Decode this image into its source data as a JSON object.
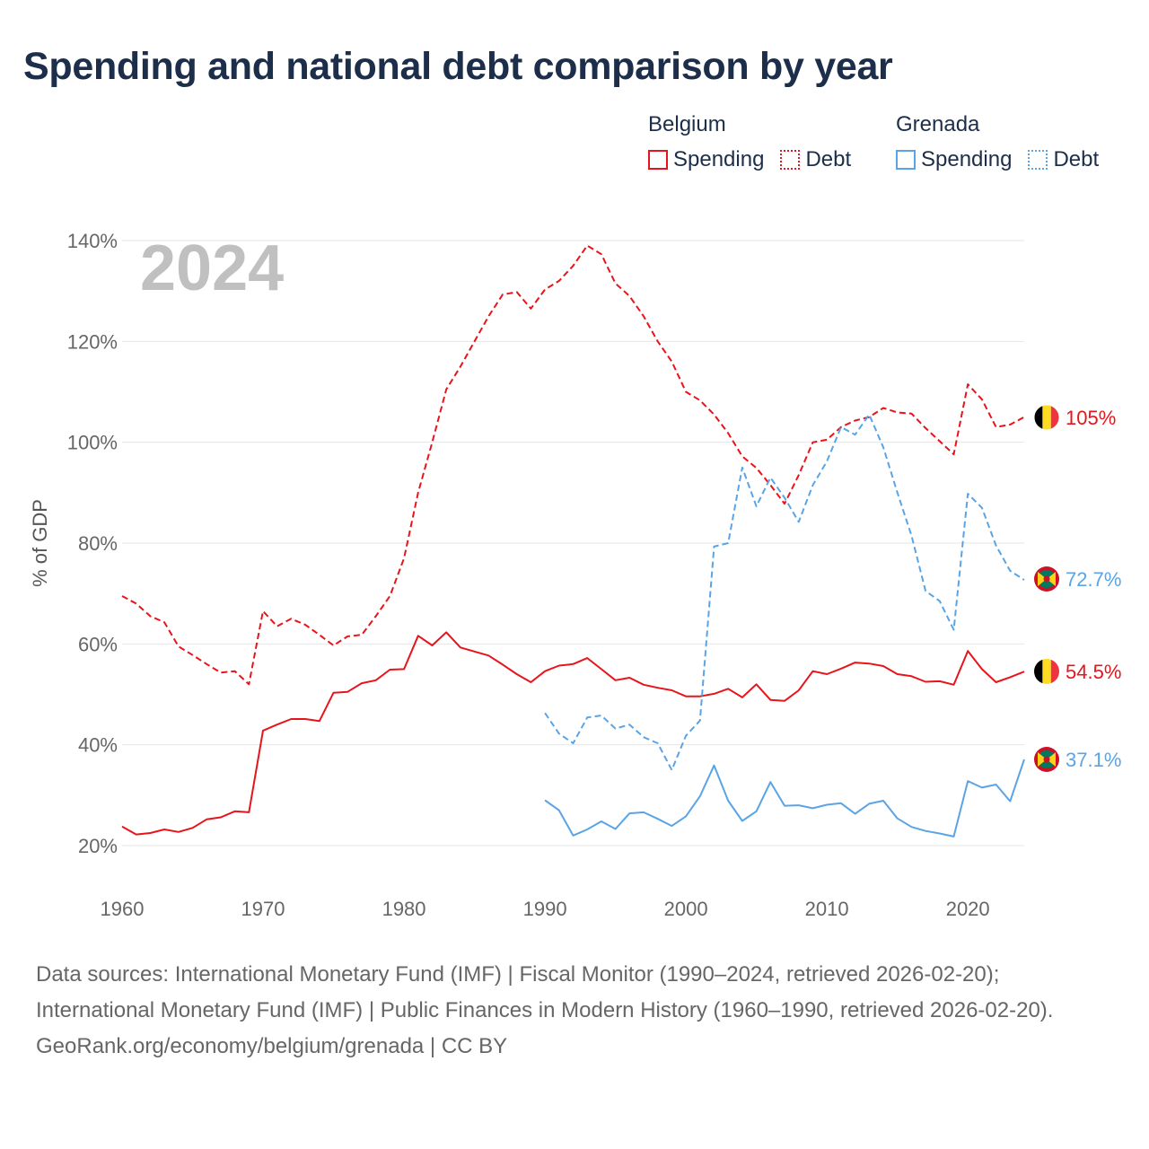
{
  "title": "Spending and national debt comparison by year",
  "year_watermark": "2024",
  "legend": {
    "groups": [
      {
        "country": "Belgium",
        "color": "#e8141b",
        "items": [
          "Spending",
          "Debt"
        ]
      },
      {
        "country": "Grenada",
        "color": "#5aa4e6",
        "items": [
          "Spending",
          "Debt"
        ]
      }
    ]
  },
  "end_labels": {
    "belgium_debt": "105%",
    "grenada_debt": "72.7%",
    "belgium_spending": "54.5%",
    "grenada_spending": "37.1%"
  },
  "source": {
    "line1": "Data sources: International Monetary Fund (IMF) | Fiscal Monitor (1990–2024, retrieved 2026-02-20); International Monetary Fund (IMF) | Public Finances in Modern History (1960–1990, retrieved 2026-02-20).",
    "line2": "GeoRank.org/economy/belgium/grenada | CC BY"
  },
  "chart_data": {
    "type": "line",
    "title": "Spending and national debt comparison by year",
    "xlabel": "",
    "ylabel": "% of GDP",
    "xlim": [
      1960,
      2024
    ],
    "ylim": [
      20,
      140
    ],
    "x_ticks": [
      1960,
      1970,
      1980,
      1990,
      2000,
      2010,
      2020
    ],
    "y_ticks": [
      20,
      40,
      60,
      80,
      100,
      120,
      140
    ],
    "y_tick_labels": [
      "20%",
      "40%",
      "60%",
      "80%",
      "100%",
      "120%",
      "140%"
    ],
    "grid": true,
    "series": [
      {
        "name": "Belgium Debt",
        "country": "Belgium",
        "measure": "Debt",
        "style": "dashed",
        "color": "#e8141b",
        "x_start": 1960,
        "values": [
          69.5,
          68,
          65.5,
          64.3,
          59.5,
          57.8,
          56,
          54.3,
          54.6,
          52,
          66.5,
          63.5,
          65,
          63.8,
          61.8,
          59.7,
          61.5,
          61.8,
          65.5,
          69.5,
          77,
          90,
          100,
          110.5,
          115,
          120,
          125,
          129.3,
          129.8,
          126.5,
          130.3,
          132,
          135,
          139,
          137.3,
          131.5,
          129,
          125,
          120,
          116,
          110,
          108.3,
          105.5,
          101.8,
          97.2,
          94.9,
          91.5,
          87.8,
          93.5,
          100,
          100.5,
          103,
          104.3,
          105,
          106.8,
          105.9,
          105.7,
          102.8,
          100.2,
          97.6,
          111.5,
          108.5,
          103,
          103.5,
          105
        ]
      },
      {
        "name": "Belgium Spending",
        "country": "Belgium",
        "measure": "Spending",
        "style": "solid",
        "color": "#e8141b",
        "x_start": 1960,
        "values": [
          23.8,
          22.2,
          22.5,
          23.2,
          22.7,
          23.5,
          25.2,
          25.6,
          26.8,
          26.6,
          42.8,
          44,
          45.1,
          45.1,
          44.7,
          50.3,
          50.5,
          52.2,
          52.8,
          54.9,
          55,
          61.6,
          59.7,
          62.3,
          59.3,
          58.5,
          57.7,
          55.9,
          54,
          52.4,
          54.6,
          55.7,
          56,
          57.2,
          55,
          52.8,
          53.3,
          51.9,
          51.3,
          50.8,
          49.6,
          49.6,
          50.1,
          51.1,
          49.4,
          52,
          48.9,
          48.7,
          50.8,
          54.6,
          54,
          55.1,
          56.3,
          56.1,
          55.6,
          54,
          53.6,
          52.5,
          52.6,
          51.9,
          58.6,
          55,
          52.4,
          53.4,
          54.5
        ]
      },
      {
        "name": "Grenada Debt",
        "country": "Grenada",
        "measure": "Debt",
        "style": "dashed",
        "color": "#5aa4e6",
        "x_start": 1990,
        "values": [
          46.3,
          42.2,
          40.3,
          45.4,
          45.8,
          43.2,
          44,
          41.5,
          40.3,
          35,
          41.8,
          44.8,
          79.3,
          80,
          95,
          87.3,
          93,
          89,
          84.2,
          91.5,
          96.2,
          103,
          101.5,
          105.5,
          99,
          90,
          81.5,
          70.5,
          68.5,
          62.8,
          89.8,
          87,
          79.5,
          74.5,
          72.7
        ]
      },
      {
        "name": "Grenada Spending",
        "country": "Grenada",
        "measure": "Spending",
        "style": "solid",
        "color": "#5aa4e6",
        "x_start": 1990,
        "values": [
          29,
          27,
          22,
          23.2,
          24.8,
          23.3,
          26.4,
          26.6,
          25.3,
          23.9,
          25.8,
          29.8,
          35.9,
          28.9,
          24.9,
          26.8,
          32.6,
          27.9,
          28,
          27.4,
          28.1,
          28.4,
          26.3,
          28.3,
          28.9,
          25.4,
          23.7,
          22.9,
          22.4,
          21.8,
          32.8,
          31.5,
          32.1,
          28.8,
          37.1
        ]
      }
    ]
  }
}
